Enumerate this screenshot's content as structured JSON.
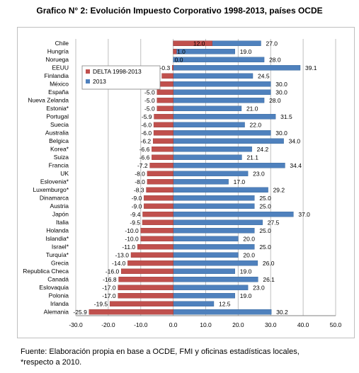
{
  "title": "Grafico N° 2: Evolución  Impuesto Corporativo 1998-2013, países OCDE",
  "note": {
    "line1": "Fuente: Elaboración propia en base a OCDE, FMI y oficinas estadísticas locales,",
    "line2": "*respecto a 2010."
  },
  "colors": {
    "delta": "#c0504d",
    "y2013": "#4f81bd",
    "grid": "#bfbfbf"
  },
  "chart_data": {
    "type": "bar",
    "orientation": "horizontal",
    "categories": [
      "Chile",
      "Hungría",
      "Noruega",
      "EEUU",
      "Finlandia",
      "México",
      "España",
      "Nueva Zelanda",
      "Estonia*",
      "Portugal",
      "Suecia",
      "Australia",
      "Belgica",
      "Korea*",
      "Suiza",
      "Francia",
      "UK",
      "Eslovenia*",
      "Luxemburgo*",
      "Dinamarca",
      "Austria",
      "Japón",
      "Italia",
      "Holanda",
      "Islandia*",
      "Israel*",
      "Turquía*",
      "Grecia",
      "Republica Checa",
      "Canadá",
      "Eslovaquia",
      "Polonia",
      "Irlanda",
      "Alemania"
    ],
    "series": [
      {
        "name": "DELTA 1998-2013",
        "values": [
          12.0,
          1.0,
          0.0,
          -0.3,
          -3.5,
          -4.0,
          -5.0,
          -5.0,
          -5.0,
          -5.9,
          -6.0,
          -6.0,
          -6.2,
          -6.6,
          -6.6,
          -7.2,
          -8.0,
          -8.0,
          -8.3,
          -9.0,
          -9.0,
          -9.4,
          -9.5,
          -10.0,
          -10.0,
          -11.0,
          -13.0,
          -14.0,
          -16.0,
          -16.8,
          -17.0,
          -17.0,
          -19.5,
          -25.9
        ]
      },
      {
        "name": "2013",
        "values": [
          27.0,
          19.0,
          28.0,
          39.1,
          24.5,
          30.0,
          30.0,
          28.0,
          21.0,
          31.5,
          22.0,
          30.0,
          34.0,
          24.2,
          21.1,
          34.4,
          23.0,
          17.0,
          29.2,
          25.0,
          25.0,
          37.0,
          27.5,
          25.0,
          20.0,
          25.0,
          20.0,
          26.0,
          19.0,
          26.1,
          23.0,
          19.0,
          12.5,
          30.2
        ]
      }
    ],
    "delta_labels": [
      "12.0",
      "1.0",
      "0.0",
      "-0.3",
      "-3.5",
      "-4.0",
      "-5.0",
      "-5.0",
      "-5.0",
      "-5.9",
      "-6.0",
      "-6.0",
      "-6.2",
      "-6.6",
      "-6.6",
      "-7.2",
      "-8.0",
      "-8.0",
      "-8.3",
      "-9.0",
      "-9.0",
      "-9.4",
      "-9.5",
      "-10.0",
      "-10.0",
      "-11.0",
      "-13.0",
      "-14.0",
      "-16.0",
      "-16.8",
      "-17.0",
      "-17.0",
      "-19.5",
      "-25.9"
    ],
    "value_labels": [
      "27.0",
      "19.0",
      "28.0",
      "39.1",
      "24.5",
      "30.0",
      "30.0",
      "28.0",
      "21.0",
      "31.5",
      "22.0",
      "30.0",
      "34.0",
      "24.2",
      "21.1",
      "34.4",
      "23.0",
      "17.0",
      "29.2",
      "25.0",
      "25.0",
      "37.0",
      "27.5",
      "25.0",
      "20.0",
      "25.0",
      "20.0",
      "26.0",
      "19.0",
      "26.1",
      "23.0",
      "19.0",
      "12.5",
      "30.2"
    ],
    "xticks": [
      -30,
      -20,
      -10,
      0,
      10,
      20,
      30,
      40,
      50
    ],
    "xtick_labels": [
      "-30.0",
      "-20.0",
      "-10.0",
      "0.0",
      "10.0",
      "20.0",
      "30.0",
      "40.0",
      "50.0"
    ],
    "xlim": [
      -30,
      50
    ],
    "legend": [
      "DELTA 1998-2013",
      "2013"
    ],
    "legend_position": "top-left"
  }
}
